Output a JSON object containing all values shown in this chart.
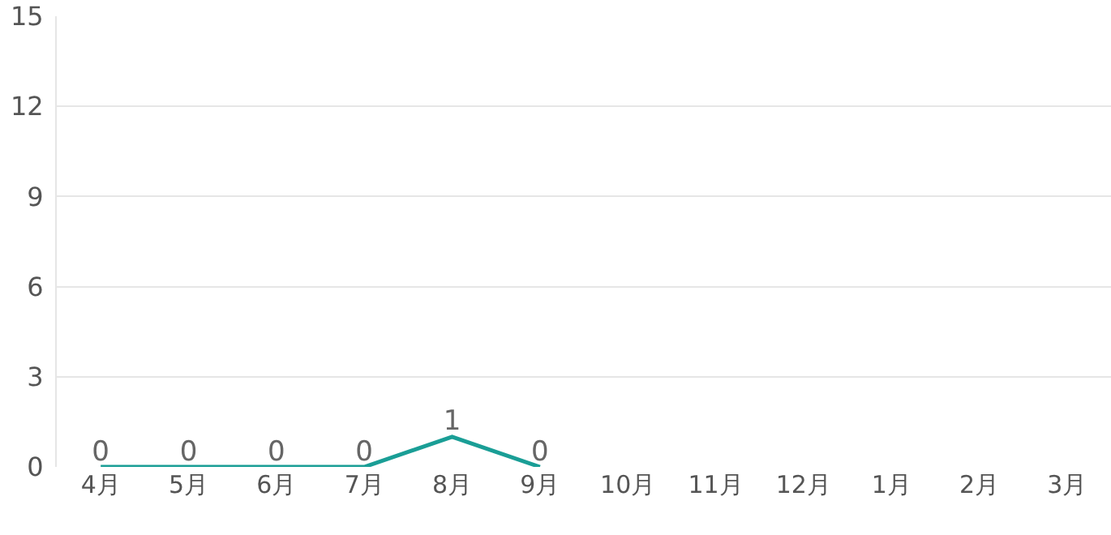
{
  "chart_data": {
    "type": "line",
    "categories": [
      "4月",
      "5月",
      "6月",
      "7月",
      "8月",
      "9月",
      "10月",
      "11月",
      "12月",
      "1月",
      "2月",
      "3月"
    ],
    "series": [
      {
        "color": "#1a9e96",
        "values": [
          0,
          0,
          0,
          0,
          1,
          0,
          null,
          null,
          null,
          null,
          null,
          null
        ]
      }
    ],
    "ylim": [
      0,
      15
    ],
    "yticks": [
      0,
      3,
      6,
      9,
      12,
      15
    ],
    "grid": "y",
    "data_labels": true,
    "marker": "none",
    "line_style": "solid",
    "legend": false
  }
}
